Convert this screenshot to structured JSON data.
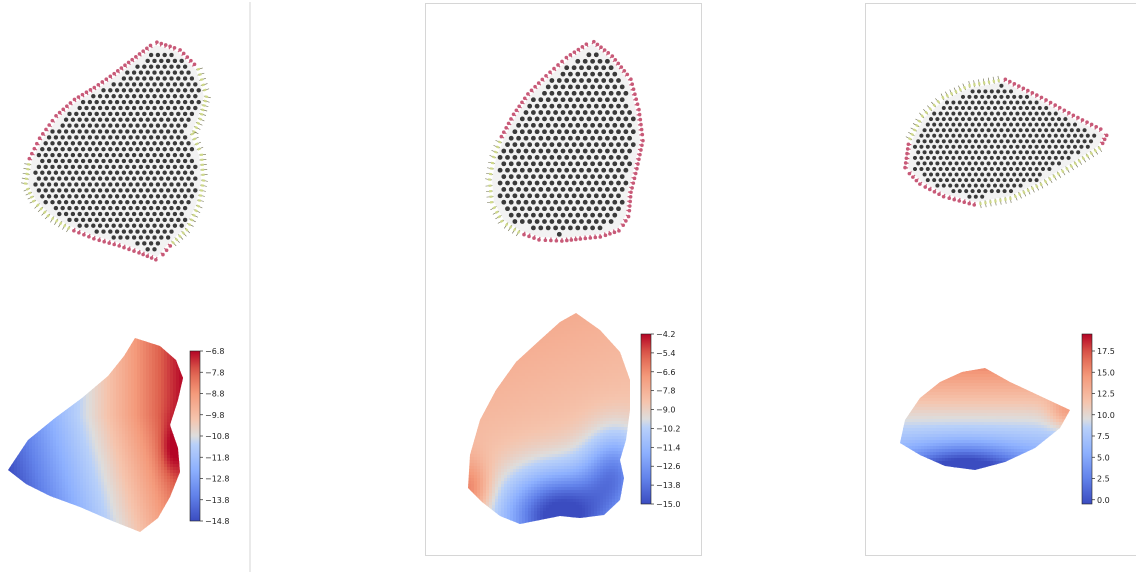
{
  "panels": [
    {
      "id": "left",
      "colorbar_ticks": [
        "−6.8",
        "−7.8",
        "−8.8",
        "−9.8",
        "−10.8",
        "−11.8",
        "−12.8",
        "−13.8",
        "−14.8"
      ],
      "colorbar_range": [
        -14.8,
        -6.8
      ]
    },
    {
      "id": "middle",
      "colorbar_ticks": [
        "−4.2",
        "−5.4",
        "−6.6",
        "−7.8",
        "−9.0",
        "−10.2",
        "−11.4",
        "−12.6",
        "−13.8",
        "−15.0"
      ],
      "colorbar_range": [
        -15.0,
        -4.2
      ]
    },
    {
      "id": "right",
      "colorbar_ticks": [
        "17.5",
        "15.0",
        "12.5",
        "10.0",
        "7.5",
        "5.0",
        "2.5",
        "0.0"
      ],
      "colorbar_range": [
        -0.5,
        19.5
      ]
    }
  ],
  "colors": {
    "particle_fill": "#3a3a3a",
    "particle_ring": "#222222",
    "region_bg": "#f2f2f2",
    "wall_bc": "#c85a78",
    "flow_bc": "#cfd98a",
    "panel_border": "#d0d0d0",
    "colormap": "coolwarm"
  }
}
